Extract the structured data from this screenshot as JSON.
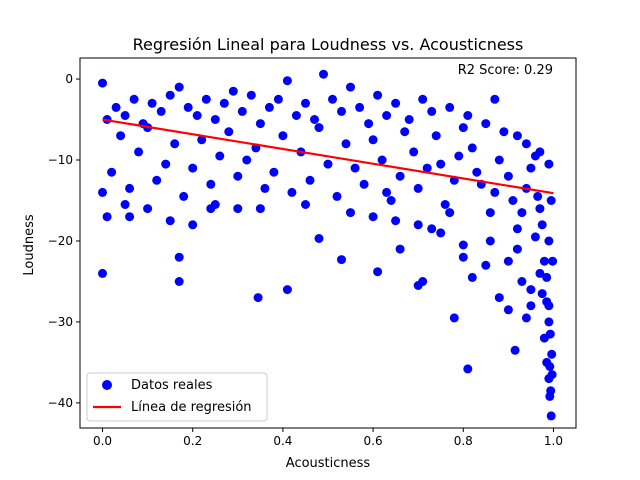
{
  "chart_data": {
    "type": "scatter",
    "title": "Regresión Lineal para Loudness vs. Acousticness",
    "xlabel": "Acousticness",
    "ylabel": "Loudness",
    "xlim": [
      -0.05,
      1.05
    ],
    "ylim": [
      -43.1,
      2.6
    ],
    "x_ticks": [
      0.0,
      0.2,
      0.4,
      0.6,
      0.8,
      1.0
    ],
    "x_tick_labels": [
      "0.0",
      "0.2",
      "0.4",
      "0.6",
      "0.8",
      "1.0"
    ],
    "y_ticks": [
      0,
      -10,
      -20,
      -30,
      -40
    ],
    "y_tick_labels": [
      "0",
      "−10",
      "−20",
      "−30",
      "−40"
    ],
    "annotation": "R2 Score: 0.29",
    "legend": {
      "position": "lower-left"
    },
    "grid": false,
    "series": [
      {
        "name": "Datos reales",
        "kind": "scatter",
        "color": "#0000ff",
        "points": [
          [
            0.0,
            -0.5
          ],
          [
            0.0,
            -24.0
          ],
          [
            0.01,
            -17.0
          ],
          [
            0.06,
            -17.0
          ],
          [
            0.15,
            -17.5
          ],
          [
            0.17,
            -22.0
          ],
          [
            0.17,
            -25.0
          ],
          [
            0.2,
            -18.0
          ],
          [
            0.24,
            -16.0
          ],
          [
            0.3,
            -16.0
          ],
          [
            0.345,
            -27.0
          ],
          [
            0.41,
            -26.0
          ],
          [
            0.41,
            -0.2
          ],
          [
            0.49,
            0.6
          ],
          [
            0.48,
            -19.7
          ],
          [
            0.53,
            -22.3
          ],
          [
            0.55,
            -1.0
          ],
          [
            0.61,
            -23.8
          ],
          [
            0.63,
            -14.0
          ],
          [
            0.66,
            -21.0
          ],
          [
            0.7,
            -25.5
          ],
          [
            0.71,
            -25.0
          ],
          [
            0.73,
            -18.5
          ],
          [
            0.77,
            -16.5
          ],
          [
            0.78,
            -29.5
          ],
          [
            0.81,
            -35.8
          ],
          [
            0.8,
            -22.0
          ],
          [
            0.82,
            -24.5
          ],
          [
            0.85,
            -23.0
          ],
          [
            0.86,
            -20.0
          ],
          [
            0.88,
            -27.0
          ],
          [
            0.9,
            -28.5
          ],
          [
            0.915,
            -33.5
          ],
          [
            0.92,
            -21.0
          ],
          [
            0.93,
            -25.0
          ],
          [
            0.94,
            -29.5
          ],
          [
            0.95,
            -28.0
          ],
          [
            0.96,
            -19.5
          ],
          [
            0.97,
            -24.0
          ],
          [
            0.975,
            -26.5
          ],
          [
            0.98,
            -32.0
          ],
          [
            0.985,
            -35.0
          ],
          [
            0.99,
            -37.0
          ],
          [
            0.992,
            -39.2
          ],
          [
            0.995,
            -41.6
          ],
          [
            0.99,
            -30.0
          ],
          [
            0.985,
            -27.5
          ],
          [
            0.98,
            -22.5
          ],
          [
            0.975,
            -18.0
          ],
          [
            0.97,
            -16.0
          ],
          [
            0.965,
            -14.5
          ],
          [
            0.96,
            -9.5
          ],
          [
            0.95,
            -11.0
          ],
          [
            0.94,
            -13.5
          ],
          [
            0.93,
            -16.5
          ],
          [
            0.92,
            -18.5
          ],
          [
            0.91,
            -15.0
          ],
          [
            0.9,
            -12.0
          ],
          [
            0.88,
            -10.0
          ],
          [
            0.87,
            -14.0
          ],
          [
            0.86,
            -16.5
          ],
          [
            0.84,
            -13.0
          ],
          [
            0.83,
            -11.5
          ],
          [
            0.82,
            -8.5
          ],
          [
            0.8,
            -6.0
          ],
          [
            0.79,
            -9.5
          ],
          [
            0.78,
            -12.5
          ],
          [
            0.76,
            -15.5
          ],
          [
            0.75,
            -10.5
          ],
          [
            0.74,
            -7.0
          ],
          [
            0.72,
            -11.0
          ],
          [
            0.7,
            -13.5
          ],
          [
            0.69,
            -9.0
          ],
          [
            0.67,
            -6.5
          ],
          [
            0.66,
            -12.0
          ],
          [
            0.64,
            -15.0
          ],
          [
            0.62,
            -10.0
          ],
          [
            0.6,
            -7.5
          ],
          [
            0.58,
            -13.0
          ],
          [
            0.56,
            -11.0
          ],
          [
            0.54,
            -8.0
          ],
          [
            0.52,
            -14.5
          ],
          [
            0.5,
            -10.5
          ],
          [
            0.48,
            -6.0
          ],
          [
            0.46,
            -12.5
          ],
          [
            0.44,
            -9.0
          ],
          [
            0.42,
            -14.0
          ],
          [
            0.4,
            -7.0
          ],
          [
            0.38,
            -11.5
          ],
          [
            0.36,
            -13.5
          ],
          [
            0.34,
            -8.5
          ],
          [
            0.32,
            -10.0
          ],
          [
            0.3,
            -12.0
          ],
          [
            0.28,
            -6.5
          ],
          [
            0.26,
            -9.5
          ],
          [
            0.24,
            -13.0
          ],
          [
            0.22,
            -7.5
          ],
          [
            0.2,
            -11.0
          ],
          [
            0.18,
            -14.5
          ],
          [
            0.16,
            -8.0
          ],
          [
            0.14,
            -10.5
          ],
          [
            0.12,
            -12.5
          ],
          [
            0.1,
            -6.0
          ],
          [
            0.08,
            -9.0
          ],
          [
            0.06,
            -13.5
          ],
          [
            0.04,
            -7.0
          ],
          [
            0.02,
            -11.5
          ],
          [
            0.0,
            -14.0
          ],
          [
            0.01,
            -5.0
          ],
          [
            0.03,
            -3.5
          ],
          [
            0.05,
            -4.5
          ],
          [
            0.07,
            -2.5
          ],
          [
            0.09,
            -5.5
          ],
          [
            0.11,
            -3.0
          ],
          [
            0.13,
            -4.0
          ],
          [
            0.15,
            -2.0
          ],
          [
            0.17,
            -1.0
          ],
          [
            0.19,
            -3.5
          ],
          [
            0.21,
            -4.5
          ],
          [
            0.23,
            -2.5
          ],
          [
            0.25,
            -5.0
          ],
          [
            0.27,
            -3.0
          ],
          [
            0.29,
            -1.5
          ],
          [
            0.31,
            -4.0
          ],
          [
            0.33,
            -2.0
          ],
          [
            0.35,
            -5.5
          ],
          [
            0.37,
            -3.5
          ],
          [
            0.39,
            -2.5
          ],
          [
            0.43,
            -4.5
          ],
          [
            0.45,
            -3.0
          ],
          [
            0.47,
            -5.0
          ],
          [
            0.51,
            -2.5
          ],
          [
            0.53,
            -4.0
          ],
          [
            0.57,
            -3.5
          ],
          [
            0.59,
            -5.5
          ],
          [
            0.61,
            -2.0
          ],
          [
            0.63,
            -4.5
          ],
          [
            0.65,
            -3.0
          ],
          [
            0.68,
            -5.0
          ],
          [
            0.71,
            -2.5
          ],
          [
            0.73,
            -4.0
          ],
          [
            0.77,
            -3.5
          ],
          [
            0.81,
            -4.5
          ],
          [
            0.85,
            -5.5
          ],
          [
            0.87,
            -2.5
          ],
          [
            0.89,
            -6.5
          ],
          [
            0.92,
            -7.0
          ],
          [
            0.94,
            -8.0
          ],
          [
            0.97,
            -9.0
          ],
          [
            0.99,
            -10.5
          ],
          [
            0.995,
            -15.0
          ],
          [
            0.99,
            -20.0
          ],
          [
            0.985,
            -24.5
          ],
          [
            0.993,
            -31.5
          ],
          [
            0.996,
            -34.0
          ],
          [
            0.997,
            -36.5
          ],
          [
            0.998,
            -22.5
          ],
          [
            0.45,
            -15.5
          ],
          [
            0.55,
            -16.5
          ],
          [
            0.65,
            -17.5
          ],
          [
            0.75,
            -19.0
          ],
          [
            0.35,
            -16.0
          ],
          [
            0.25,
            -15.5
          ],
          [
            0.1,
            -16.0
          ],
          [
            0.05,
            -15.5
          ],
          [
            0.6,
            -17.0
          ],
          [
            0.7,
            -18.0
          ],
          [
            0.8,
            -20.5
          ],
          [
            0.9,
            -22.5
          ],
          [
            0.95,
            -26.0
          ],
          [
            0.99,
            -28.0
          ],
          [
            0.992,
            -35.5
          ],
          [
            0.994,
            -38.5
          ]
        ]
      },
      {
        "name": "Línea de regresión",
        "kind": "line",
        "color": "#ff0000",
        "x": [
          0.0,
          1.0
        ],
        "y": [
          -5.0,
          -14.1
        ]
      }
    ]
  }
}
